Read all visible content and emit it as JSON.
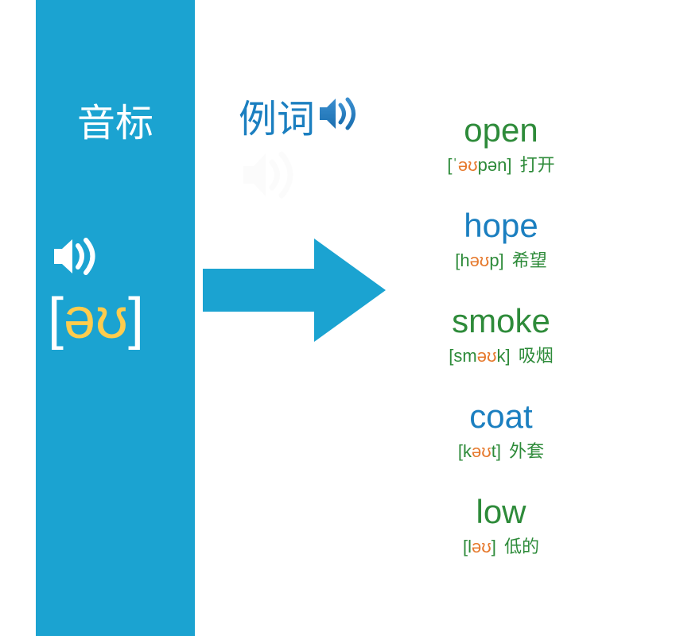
{
  "colors": {
    "sidebar_bg": "#1ba3d1",
    "white": "#ffffff",
    "vowel": "#ffcc4d",
    "green": "#2e8b3a",
    "blue": "#1b7fc0",
    "orange": "#e67a2e"
  },
  "sidebar": {
    "title": "音标",
    "phonetic": {
      "left": "[",
      "vowel": "əʊ",
      "right": "]"
    }
  },
  "example": {
    "title": "例词"
  },
  "words": [
    {
      "en": "open",
      "color": "green",
      "pron_pre": "[ˈ",
      "pron_dip": "əʊ",
      "pron_post": "pən]",
      "cn": "打开"
    },
    {
      "en": "hope",
      "color": "blue",
      "pron_pre": "[h",
      "pron_dip": "əʊ",
      "pron_post": "p]",
      "cn": "希望"
    },
    {
      "en": "smoke",
      "color": "green",
      "pron_pre": "[sm",
      "pron_dip": "əʊ",
      "pron_post": "k]",
      "cn": "吸烟"
    },
    {
      "en": "coat",
      "color": "blue",
      "pron_pre": "[k",
      "pron_dip": "əʊ",
      "pron_post": "t]",
      "cn": "外套"
    },
    {
      "en": "low",
      "color": "green",
      "pron_pre": "[l",
      "pron_dip": "əʊ",
      "pron_post": "]",
      "cn": "低的"
    }
  ]
}
